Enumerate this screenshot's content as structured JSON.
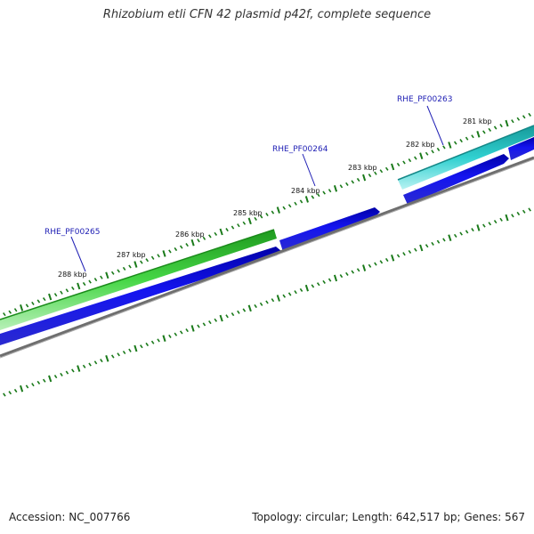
{
  "title": "Rhizobium etli CFN 42 plasmid p42f, complete sequence",
  "footer": {
    "accession": "Accession: NC_007766",
    "summary": "Topology: circular; Length: 642,517 bp; Genes: 567"
  },
  "colors": {
    "background": "#ffffff",
    "tick": "#1a7a1a",
    "backbone": "#808080",
    "cds": "#1010e0",
    "gene_green": "#3ccc3c",
    "gene_cyan": "#28c8c8",
    "label": "#1e1eb4"
  },
  "kbp_labels": [
    "281 kbp",
    "282 kbp",
    "283 kbp",
    "284 kbp",
    "285 kbp",
    "286 kbp",
    "287 kbp",
    "288 kbp"
  ],
  "genes": [
    {
      "label": "RHE_PF00263",
      "color_key": "gene_cyan"
    },
    {
      "label": "RHE_PF00264",
      "color_key": "cds"
    },
    {
      "label": "RHE_PF00265",
      "color_key": "gene_green"
    }
  ]
}
